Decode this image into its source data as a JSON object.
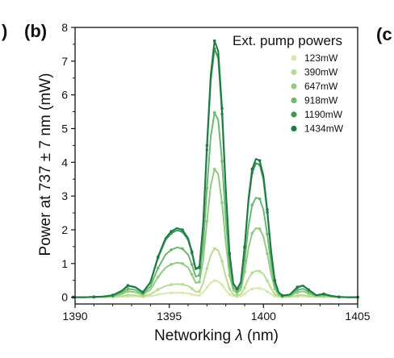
{
  "panel_labels": {
    "left": ")",
    "main": "(b)",
    "right": "(c"
  },
  "chart_data": {
    "type": "line",
    "title": "",
    "xlabel_prefix": "Networking ",
    "xlabel_symbol": "λ",
    "xlabel_suffix": " (nm)",
    "ylabel": "Power at 737 ± 7 nm (mW)",
    "xlim": [
      1390,
      1405
    ],
    "ylim": [
      -0.2,
      8
    ],
    "xticks": [
      1390,
      1395,
      1400,
      1405
    ],
    "yticks": [
      0,
      1,
      2,
      3,
      4,
      5,
      6,
      7,
      8
    ],
    "grid": false,
    "legend_title": "Ext. pump powers",
    "legend_position": "top-right",
    "series": [
      {
        "name": "123mW",
        "color": "#d9e8b0",
        "scale": 0.065
      },
      {
        "name": "390mW",
        "color": "#b7dc96",
        "scale": 0.19
      },
      {
        "name": "647mW",
        "color": "#8fcb80",
        "scale": 0.5
      },
      {
        "name": "918mW",
        "color": "#6bb873",
        "scale": 0.72
      },
      {
        "name": "1190mW",
        "color": "#3f9858",
        "scale": 0.97
      },
      {
        "name": "1434mW",
        "color": "#1f7a45",
        "scale": 1.0
      }
    ],
    "profile_x": [
      1389.9,
      1390.5,
      1391.0,
      1391.5,
      1392.0,
      1392.5,
      1392.8,
      1393.2,
      1393.6,
      1394.0,
      1394.4,
      1394.8,
      1395.1,
      1395.4,
      1395.7,
      1396.0,
      1396.2,
      1396.4,
      1396.6,
      1396.8,
      1397.0,
      1397.2,
      1397.4,
      1397.6,
      1397.8,
      1398.0,
      1398.2,
      1398.4,
      1398.6,
      1398.8,
      1399.0,
      1399.2,
      1399.4,
      1399.6,
      1399.8,
      1400.0,
      1400.2,
      1400.4,
      1400.6,
      1400.8,
      1401.0,
      1401.4,
      1401.8,
      1402.1,
      1402.4,
      1402.8,
      1403.2,
      1403.6,
      1404.0,
      1404.5,
      1405.0
    ],
    "profile_y": [
      0.0,
      0.0,
      0.01,
      0.02,
      0.06,
      0.2,
      0.35,
      0.3,
      0.15,
      0.45,
      1.2,
      1.75,
      1.95,
      2.05,
      2.0,
      1.75,
      1.35,
      0.85,
      0.9,
      2.2,
      4.5,
      6.6,
      7.6,
      7.3,
      5.6,
      3.2,
      1.3,
      0.4,
      0.25,
      0.45,
      1.5,
      2.9,
      3.8,
      4.1,
      4.05,
      3.6,
      2.6,
      1.4,
      0.5,
      0.15,
      0.05,
      0.08,
      0.3,
      0.35,
      0.22,
      0.06,
      0.1,
      0.04,
      0.01,
      0.0,
      0.0
    ]
  }
}
